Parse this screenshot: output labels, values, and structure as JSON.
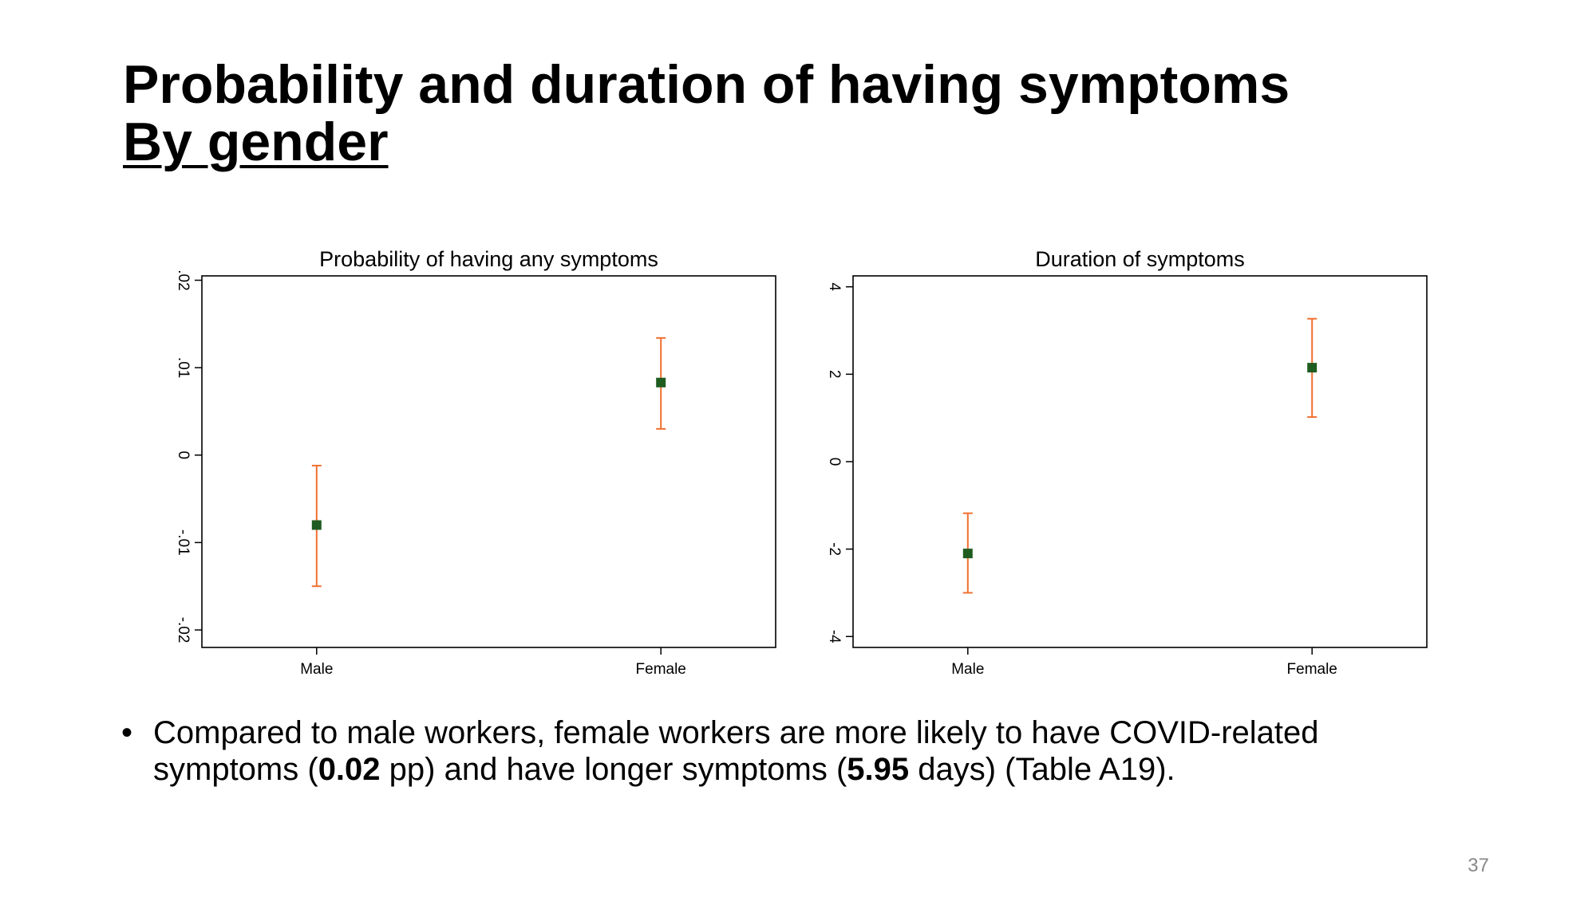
{
  "slide": {
    "title": "Probability and duration of having symptoms",
    "subtitle": "By gender",
    "bullet": {
      "marker": "•",
      "text_1": "Compared to male workers, female workers are more likely to have COVID-related symptoms (",
      "bold_1": "0.02",
      "text_2": " pp) and have longer symptoms (",
      "bold_2": "5.95",
      "text_3": " days) (Table A19)."
    },
    "page_number": "37"
  },
  "colors": {
    "point": "#1f5c1f",
    "error_bar": "#f07030",
    "axis": "#000000"
  },
  "chart_data": [
    {
      "type": "scatter",
      "title": "Probability of having any symptoms",
      "xlabel": "",
      "ylabel": "",
      "categories": [
        "Male",
        "Female"
      ],
      "values": [
        -0.008,
        0.0083
      ],
      "ci_low": [
        -0.015,
        0.003
      ],
      "ci_high": [
        -0.0012,
        0.0134
      ],
      "ylim": [
        -0.022,
        0.0205
      ],
      "yticks": [
        {
          "value": -0.02,
          "label": "-.02"
        },
        {
          "value": -0.01,
          "label": "-.01"
        },
        {
          "value": 0,
          "label": "0"
        },
        {
          "value": 0.01,
          "label": ".01"
        },
        {
          "value": 0.02,
          "label": ".02"
        }
      ],
      "grid": false,
      "marker": "square",
      "error_bars": true
    },
    {
      "type": "scatter",
      "title": "Duration of symptoms",
      "xlabel": "",
      "ylabel": "",
      "categories": [
        "Male",
        "Female"
      ],
      "values": [
        -2.1,
        2.15
      ],
      "ci_low": [
        -3.0,
        1.02
      ],
      "ci_high": [
        -1.18,
        3.27
      ],
      "ylim": [
        -4.25,
        4.25
      ],
      "yticks": [
        {
          "value": -4,
          "label": "-4"
        },
        {
          "value": -2,
          "label": "-2"
        },
        {
          "value": 0,
          "label": "0"
        },
        {
          "value": 2,
          "label": "2"
        },
        {
          "value": 4,
          "label": "4"
        }
      ],
      "grid": false,
      "marker": "square",
      "error_bars": true
    }
  ]
}
